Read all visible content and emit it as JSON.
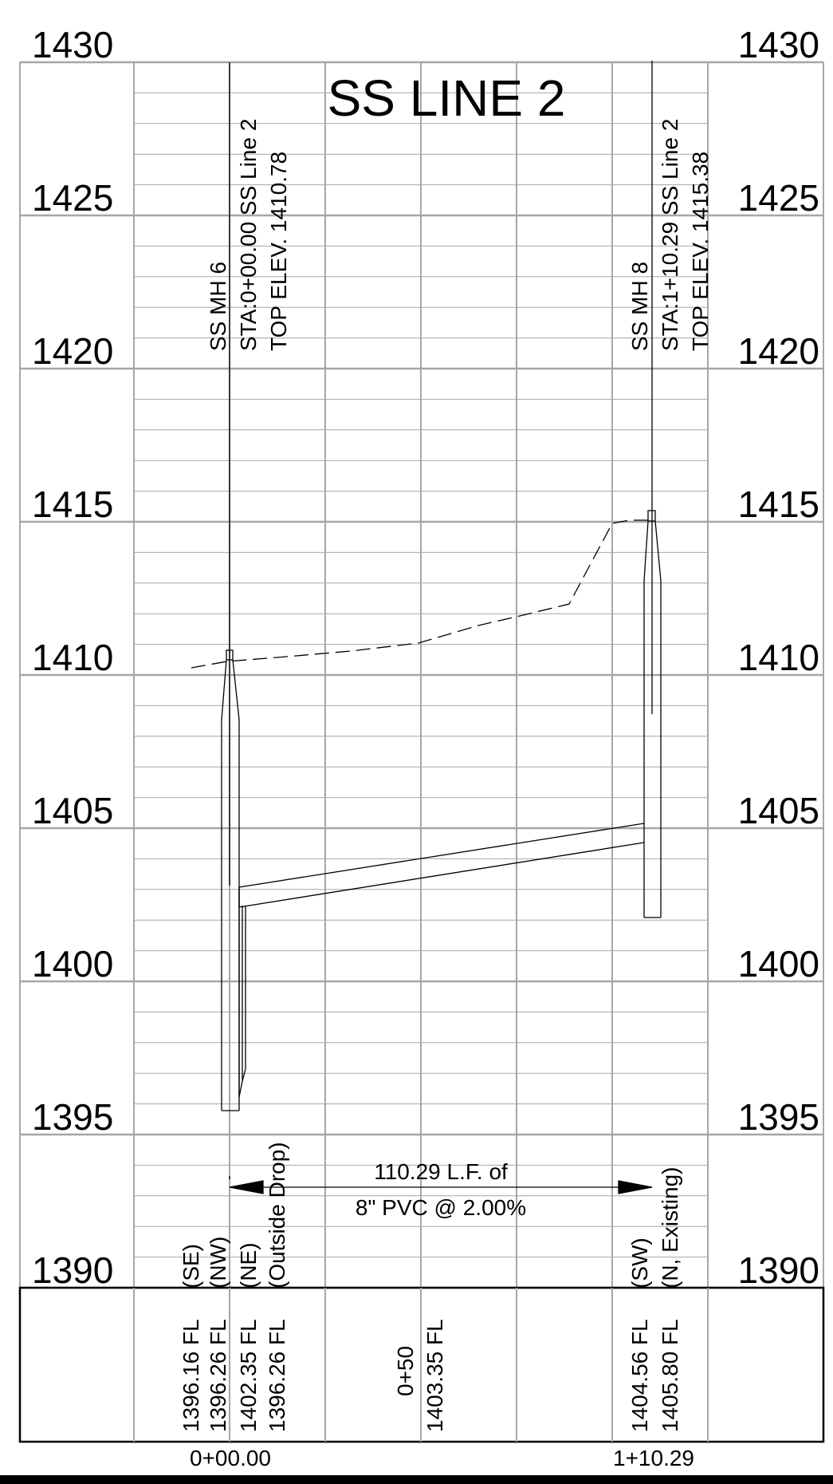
{
  "title": "SS LINE 2",
  "elevation_axis": {
    "labels": [
      "1430",
      "1425",
      "1420",
      "1415",
      "1410",
      "1405",
      "1400",
      "1395",
      "1390"
    ]
  },
  "manholes": [
    {
      "name": "SS MH 6",
      "station_label": "STA:0+00.00 SS Line 2",
      "top_elev_label": "TOP ELEV. 1410.78",
      "station_value": 0,
      "top_elev": 1410.78
    },
    {
      "name": "SS MH 8",
      "station_label": "STA:1+10.29 SS Line 2",
      "top_elev_label": "TOP ELEV. 1415.38",
      "station_value": 110.29,
      "top_elev": 1415.38
    }
  ],
  "pipe_callout": {
    "line1": "110.29 L.F. of",
    "line2": "8\" PVC @ 2.00%"
  },
  "direction_labels": {
    "mh6_left": "(SE)",
    "mh6_left2": "(NW)",
    "mh6_right": "(NE)",
    "mh6_right2": "(Outside Drop)",
    "mh8_left": "(SW)",
    "mh8_right": "(N, Existing)"
  },
  "flowline_labels": {
    "mh6_a": "1396.16 FL",
    "mh6_b": "1396.26 FL",
    "mh6_c": "1402.35 FL",
    "mh6_d": "1396.26 FL",
    "mid_station": "0+50",
    "mid_fl": "1403.35 FL",
    "mh8_a": "1404.56 FL",
    "mh8_b": "1405.80 FL"
  },
  "station_labels": {
    "start": "0+00.00",
    "end": "1+10.29"
  },
  "colors": {
    "grid": "#a6a6a6",
    "line": "#000000",
    "background": "#ffffff"
  }
}
